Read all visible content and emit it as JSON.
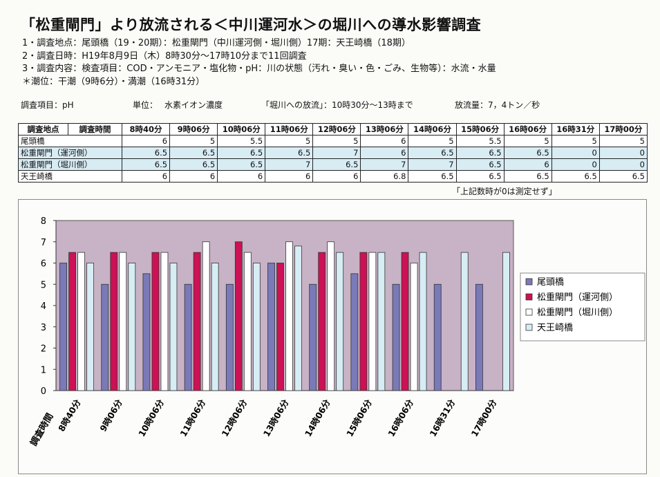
{
  "title": "「松重閘門」より放流される＜中川運河水＞の堀川への導水影響調査",
  "info": {
    "line1": "1・調査地点：尾頭橋（19・20期）：松重閘門（中川運河側・堀川側）17期：天王崎橋（18期）",
    "line2": "2・調査日時：H19年8月9日（木）8時30分～17時10分まで11回調査",
    "line3": "3・調査内容：検査項目：COD・アンモニア・塩化物・pH：川の状態（汚れ・臭い・色・ごみ、生物等）：水流・水量",
    "line4": "＊潮位：干潮（9時6分）・満潮（16時31分）"
  },
  "unitline": {
    "item": "調査項目：pH",
    "unit_label": "単位：",
    "unit_value": "水素イオン濃度",
    "release": "「堀川への放流」：10時30分～13時まで",
    "amount": "放流量：7，4トン／秒"
  },
  "table": {
    "header_site": "調査地点",
    "header_time": "調査時間",
    "times": [
      "8時40分",
      "9時06分",
      "10時06分",
      "11時06分",
      "12時06分",
      "13時06分",
      "14時06分",
      "15時06分",
      "16時06分",
      "16時31分",
      "17時00分"
    ],
    "rows": [
      {
        "site": "尾頭橋",
        "values": [
          "6",
          "5",
          "5.5",
          "5",
          "5",
          "6",
          "5",
          "5.5",
          "5",
          "5",
          "5"
        ]
      },
      {
        "site": "松重閘門（運河側）",
        "values": [
          "6.5",
          "6.5",
          "6.5",
          "6.5",
          "7",
          "6",
          "6.5",
          "6.5",
          "6.5",
          "0",
          "0"
        ]
      },
      {
        "site": "松重閘門（堀川側）",
        "values": [
          "6.5",
          "6.5",
          "6.5",
          "7",
          "6.5",
          "7",
          "7",
          "6.5",
          "6",
          "0",
          "0"
        ]
      },
      {
        "site": "天王崎橋",
        "values": [
          "6",
          "6",
          "6",
          "6",
          "6",
          "6.8",
          "6.5",
          "6.5",
          "6.5",
          "6.5",
          "6.5"
        ]
      }
    ]
  },
  "note": "「上記数時が0は測定せず」",
  "colors": {
    "plot_bg": "#c8b2c5",
    "series": [
      "#7a7ab8",
      "#cc1155",
      "#ffffff",
      "#d6edf4"
    ]
  },
  "chart_data": {
    "type": "bar",
    "categories": [
      "8時40分",
      "9時06分",
      "10時06分",
      "11時06分",
      "12時06分",
      "13時06分",
      "14時06分",
      "15時06分",
      "16時06分",
      "16時31分",
      "17時00分"
    ],
    "series": [
      {
        "name": "尾頭橋",
        "values": [
          6,
          5,
          5.5,
          5,
          5,
          6,
          5,
          5.5,
          5,
          5,
          5
        ]
      },
      {
        "name": "松重閘門（運河側）",
        "values": [
          6.5,
          6.5,
          6.5,
          6.5,
          7,
          6,
          6.5,
          6.5,
          6.5,
          0,
          0
        ]
      },
      {
        "name": "松重閘門（堀川側）",
        "values": [
          6.5,
          6.5,
          6.5,
          7,
          6.5,
          7,
          7,
          6.5,
          6,
          0,
          0
        ]
      },
      {
        "name": "天王崎橋",
        "values": [
          6,
          6,
          6,
          6,
          6,
          6.8,
          6.5,
          6.5,
          6.5,
          6.5,
          6.5
        ]
      }
    ],
    "xlabel": "調査時間",
    "ylabel": "",
    "ylim": [
      0,
      8
    ],
    "yticks": [
      0,
      1,
      2,
      3,
      4,
      5,
      6,
      7,
      8
    ],
    "grid": false,
    "legend": "right"
  }
}
